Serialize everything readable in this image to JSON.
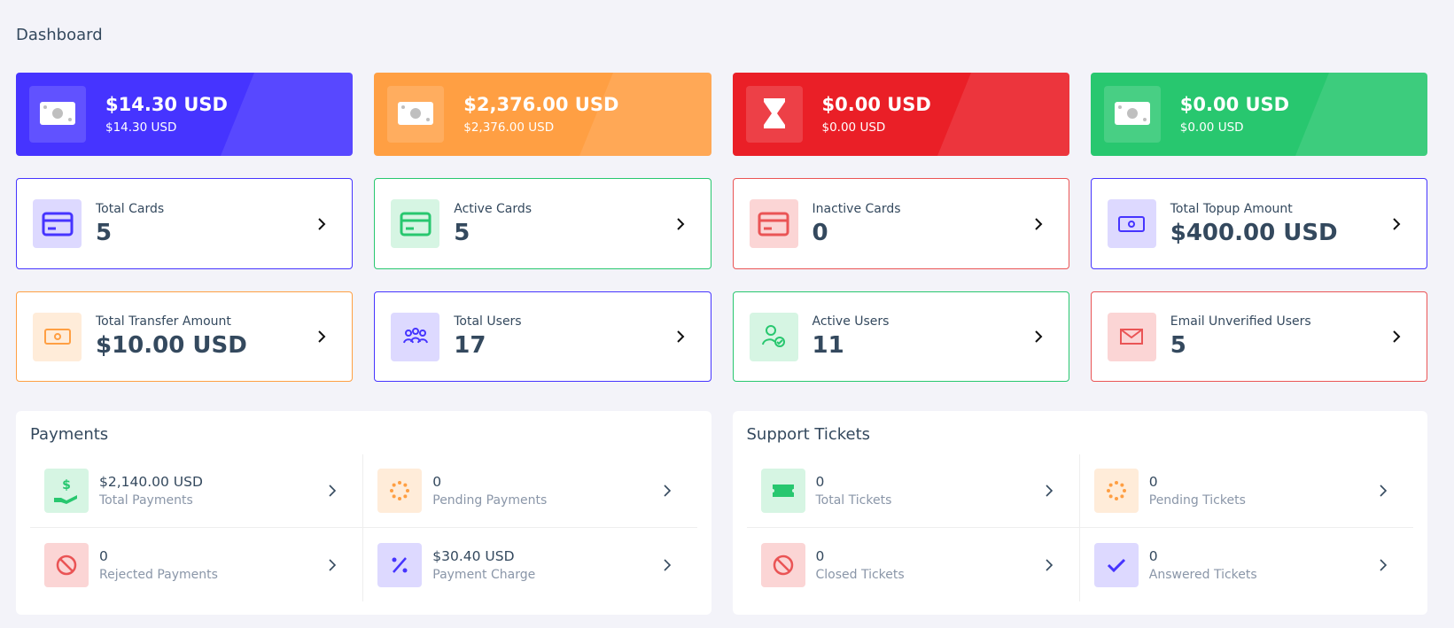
{
  "header": {
    "title": "Dashboard"
  },
  "balance_cards": [
    {
      "amount": "$14.30 USD",
      "sub": "$14.30 USD"
    },
    {
      "amount": "$2,376.00 USD",
      "sub": "$2,376.00 USD"
    },
    {
      "amount": "$0.00 USD",
      "sub": "$0.00 USD"
    },
    {
      "amount": "$0.00 USD",
      "sub": "$0.00 USD"
    }
  ],
  "stat_cards": [
    {
      "label": "Total Cards",
      "value": "5"
    },
    {
      "label": "Active Cards",
      "value": "5"
    },
    {
      "label": "Inactive Cards",
      "value": "0"
    },
    {
      "label": "Total Topup Amount",
      "value": "$400.00 USD"
    },
    {
      "label": "Total Transfer Amount",
      "value": "$10.00 USD"
    },
    {
      "label": "Total Users",
      "value": "17"
    },
    {
      "label": "Active Users",
      "value": "11"
    },
    {
      "label": "Email Unverified Users",
      "value": "5"
    }
  ],
  "panels": [
    {
      "title": "Payments",
      "items": [
        {
          "value": "$2,140.00 USD",
          "label": "Total Payments"
        },
        {
          "value": "0",
          "label": "Pending Payments"
        },
        {
          "value": "0",
          "label": "Rejected Payments"
        },
        {
          "value": "$30.40 USD",
          "label": "Payment Charge"
        }
      ]
    },
    {
      "title": "Support Tickets",
      "items": [
        {
          "value": "0",
          "label": "Total Tickets"
        },
        {
          "value": "0",
          "label": "Pending Tickets"
        },
        {
          "value": "0",
          "label": "Closed Tickets"
        },
        {
          "value": "0",
          "label": "Answered Tickets"
        }
      ]
    }
  ]
}
